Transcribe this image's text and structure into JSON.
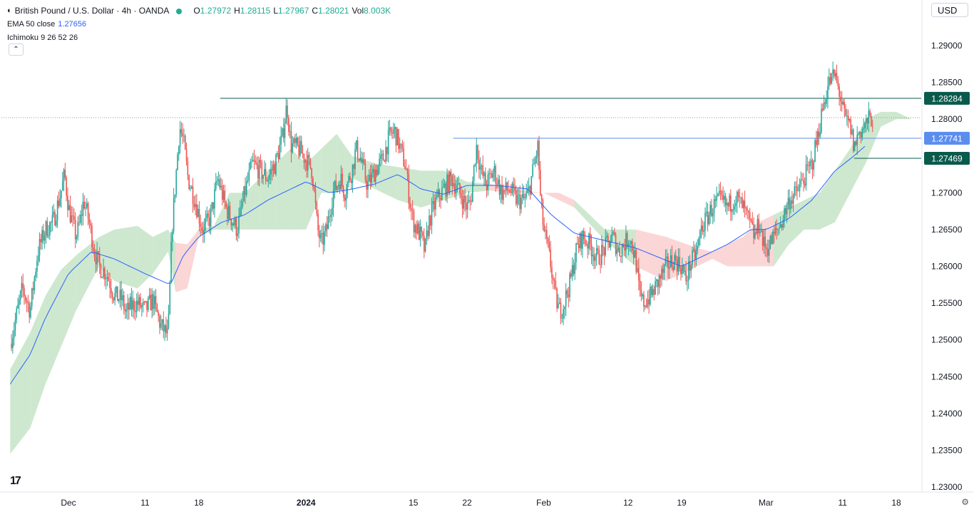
{
  "header": {
    "symbol_title": "British Pound / U.S. Dollar · 4h · OANDA",
    "ohlc": [
      {
        "key": "O",
        "value": "1.27972"
      },
      {
        "key": "H",
        "value": "1.28115"
      },
      {
        "key": "L",
        "value": "1.27967"
      },
      {
        "key": "C",
        "value": "1.28021"
      },
      {
        "key": "Vol",
        "value": "8.003K"
      }
    ],
    "ema_label": "EMA 50 close",
    "ema_value": "1.27656",
    "ichimoku_label": "Ichimoku 9 26 52 26",
    "collapse_icon": "chevron-up-icon"
  },
  "currency_selector": "USD",
  "colors": {
    "up": "#26a69a",
    "down": "#ef5350",
    "ema": "#2962ff",
    "cloud_bull": "#a5d6a7",
    "cloud_bear": "#f7b5b5",
    "line_dark": "#0a5a4c",
    "line_blue": "#5b8def"
  },
  "chart_data": {
    "type": "line",
    "ylim": [
      1.23,
      1.29
    ],
    "y_ticks": [
      "1.29000",
      "1.28500",
      "1.28000",
      "1.27500",
      "1.27000",
      "1.26500",
      "1.26000",
      "1.25500",
      "1.25000",
      "1.24500",
      "1.24000",
      "1.23500",
      "1.23000"
    ],
    "y_tick_values": [
      1.29,
      1.285,
      1.28,
      1.275,
      1.27,
      1.265,
      1.26,
      1.255,
      1.25,
      1.245,
      1.24,
      1.235,
      1.23
    ],
    "x_ticks": [
      {
        "label": "Dec",
        "day": 0
      },
      {
        "label": "11",
        "day": 10
      },
      {
        "label": "18",
        "day": 17
      },
      {
        "label": "2024",
        "day": 31,
        "bold": true
      },
      {
        "label": "15",
        "day": 45
      },
      {
        "label": "22",
        "day": 52
      },
      {
        "label": "Feb",
        "day": 62
      },
      {
        "label": "12",
        "day": 73
      },
      {
        "label": "19",
        "day": 80
      },
      {
        "label": "Mar",
        "day": 91
      },
      {
        "label": "11",
        "day": 101
      },
      {
        "label": "18",
        "day": 108
      }
    ],
    "price_labels": [
      {
        "value": "1.28284",
        "price": 1.28284,
        "style": "dark"
      },
      {
        "value": "1.27741",
        "price": 1.27741,
        "style": "blue"
      },
      {
        "value": "1.27469",
        "price": 1.27469,
        "style": "dark"
      }
    ],
    "horizontal_lines": [
      {
        "price": 1.28284,
        "from_day": 19.8,
        "style": "dark"
      },
      {
        "price": 1.27741,
        "from_day": 50.2,
        "style": "blue"
      },
      {
        "price": 1.27469,
        "from_day": 102.5,
        "style": "dark"
      }
    ],
    "last_price": 1.28021,
    "close_path": [
      [
        -7.6,
        1.2495
      ],
      [
        -6,
        1.257
      ],
      [
        -5,
        1.254
      ],
      [
        -4,
        1.262
      ],
      [
        -3,
        1.265
      ],
      [
        -2,
        1.266
      ],
      [
        -1,
        1.27
      ],
      [
        -0.5,
        1.2725
      ],
      [
        0,
        1.268
      ],
      [
        1,
        1.264
      ],
      [
        1.5,
        1.266
      ],
      [
        2,
        1.269
      ],
      [
        2.6,
        1.2665
      ],
      [
        3.4,
        1.262
      ],
      [
        4,
        1.26
      ],
      [
        5,
        1.259
      ],
      [
        6,
        1.256
      ],
      [
        7,
        1.2555
      ],
      [
        7.5,
        1.2535
      ],
      [
        8,
        1.2545
      ],
      [
        9,
        1.255
      ],
      [
        10,
        1.254
      ],
      [
        11,
        1.2555
      ],
      [
        12,
        1.252
      ],
      [
        13,
        1.2505
      ],
      [
        13.5,
        1.265
      ],
      [
        14,
        1.272
      ],
      [
        14.5,
        1.279
      ],
      [
        15,
        1.277
      ],
      [
        15.6,
        1.272
      ],
      [
        16.5,
        1.269
      ],
      [
        17.5,
        1.265
      ],
      [
        18.5,
        1.2665
      ],
      [
        19.5,
        1.272
      ],
      [
        20.5,
        1.268
      ],
      [
        21.5,
        1.266
      ],
      [
        22,
        1.265
      ],
      [
        23,
        1.27
      ],
      [
        24,
        1.274
      ],
      [
        25,
        1.273
      ],
      [
        26,
        1.272
      ],
      [
        27,
        1.274
      ],
      [
        27.9,
        1.2775
      ],
      [
        28.5,
        1.282
      ],
      [
        29,
        1.2765
      ],
      [
        30,
        1.276
      ],
      [
        31,
        1.2745
      ],
      [
        31.8,
        1.273
      ],
      [
        32.5,
        1.265
      ],
      [
        33,
        1.263
      ],
      [
        33.7,
        1.265
      ],
      [
        34.5,
        1.27
      ],
      [
        35.5,
        1.272
      ],
      [
        36,
        1.27
      ],
      [
        37,
        1.273
      ],
      [
        37.5,
        1.276
      ],
      [
        38,
        1.275
      ],
      [
        39,
        1.271
      ],
      [
        40,
        1.273
      ],
      [
        41,
        1.2745
      ],
      [
        41.8,
        1.2775
      ],
      [
        42.5,
        1.2785
      ],
      [
        43,
        1.277
      ],
      [
        44,
        1.2735
      ],
      [
        44.5,
        1.269
      ],
      [
        45,
        1.266
      ],
      [
        46,
        1.264
      ],
      [
        46.5,
        1.262
      ],
      [
        47,
        1.266
      ],
      [
        48,
        1.269
      ],
      [
        49,
        1.2705
      ],
      [
        50,
        1.272
      ],
      [
        51,
        1.27
      ],
      [
        52,
        1.268
      ],
      [
        52.5,
        1.269
      ],
      [
        53.2,
        1.2765
      ],
      [
        53.8,
        1.273
      ],
      [
        54.5,
        1.271
      ],
      [
        55.5,
        1.273
      ],
      [
        56.5,
        1.27
      ],
      [
        57.5,
        1.2705
      ],
      [
        58.5,
        1.269
      ],
      [
        59.5,
        1.269
      ],
      [
        60,
        1.27
      ],
      [
        60.8,
        1.274
      ],
      [
        61.3,
        1.2765
      ],
      [
        61.5,
        1.27
      ],
      [
        62,
        1.265
      ],
      [
        62.8,
        1.261
      ],
      [
        63.5,
        1.256
      ],
      [
        64,
        1.254
      ],
      [
        64.5,
        1.2545
      ],
      [
        65.5,
        1.258
      ],
      [
        66.2,
        1.262
      ],
      [
        67,
        1.264
      ],
      [
        68,
        1.263
      ],
      [
        69,
        1.261
      ],
      [
        70,
        1.2625
      ],
      [
        71,
        1.264
      ],
      [
        71.8,
        1.262
      ],
      [
        72.5,
        1.263
      ],
      [
        73.2,
        1.264
      ],
      [
        74,
        1.261
      ],
      [
        74.5,
        1.256
      ],
      [
        75,
        1.255
      ],
      [
        76,
        1.256
      ],
      [
        77,
        1.258
      ],
      [
        78,
        1.26
      ],
      [
        79,
        1.261
      ],
      [
        80,
        1.26
      ],
      [
        80.5,
        1.258
      ],
      [
        81,
        1.26
      ],
      [
        82,
        1.262
      ],
      [
        82.5,
        1.265
      ],
      [
        83,
        1.266
      ],
      [
        84,
        1.268
      ],
      [
        85,
        1.269
      ],
      [
        86,
        1.268
      ],
      [
        87,
        1.2695
      ],
      [
        88,
        1.268
      ],
      [
        88.8,
        1.266
      ],
      [
        89.5,
        1.264
      ],
      [
        90.2,
        1.266
      ],
      [
        90.6,
        1.263
      ],
      [
        91.2,
        1.2625
      ],
      [
        92,
        1.264
      ],
      [
        93,
        1.266
      ],
      [
        94,
        1.269
      ],
      [
        95,
        1.27
      ],
      [
        96,
        1.272
      ],
      [
        97,
        1.274
      ],
      [
        97.8,
        1.278
      ],
      [
        98.5,
        1.282
      ],
      [
        99.2,
        1.285
      ],
      [
        100,
        1.286
      ],
      [
        100.6,
        1.2835
      ],
      [
        101.3,
        1.28
      ],
      [
        102,
        1.279
      ],
      [
        102.5,
        1.276
      ],
      [
        103,
        1.278
      ],
      [
        103.8,
        1.279
      ],
      [
        104.5,
        1.28
      ],
      [
        105,
        1.2802
      ]
    ],
    "candle_noise": 0.0028,
    "ema_path": [
      [
        -7.6,
        1.244
      ],
      [
        -5,
        1.248
      ],
      [
        -3,
        1.253
      ],
      [
        0,
        1.259
      ],
      [
        3,
        1.262
      ],
      [
        6,
        1.261
      ],
      [
        10,
        1.259
      ],
      [
        13.3,
        1.2575
      ],
      [
        15,
        1.2615
      ],
      [
        17,
        1.264
      ],
      [
        20,
        1.266
      ],
      [
        23,
        1.267
      ],
      [
        26,
        1.269
      ],
      [
        29,
        1.2705
      ],
      [
        31,
        1.2715
      ],
      [
        34,
        1.27
      ],
      [
        37,
        1.2705
      ],
      [
        40,
        1.2712
      ],
      [
        43,
        1.2725
      ],
      [
        46,
        1.2705
      ],
      [
        49,
        1.2698
      ],
      [
        52,
        1.271
      ],
      [
        56,
        1.271
      ],
      [
        60,
        1.2705
      ],
      [
        63,
        1.267
      ],
      [
        66,
        1.2645
      ],
      [
        70,
        1.2635
      ],
      [
        74,
        1.2625
      ],
      [
        78,
        1.2608
      ],
      [
        80,
        1.26
      ],
      [
        83,
        1.2615
      ],
      [
        86,
        1.263
      ],
      [
        89,
        1.265
      ],
      [
        91,
        1.265
      ],
      [
        94,
        1.2665
      ],
      [
        97,
        1.269
      ],
      [
        100,
        1.273
      ],
      [
        102,
        1.2746
      ],
      [
        104,
        1.2764
      ]
    ],
    "cloud": [
      [
        -7.6,
        1.2345,
        1.246
      ],
      [
        -5,
        1.238,
        1.251
      ],
      [
        -3,
        1.244,
        1.256
      ],
      [
        -1,
        1.249,
        1.2595
      ],
      [
        1,
        1.254,
        1.2615
      ],
      [
        4,
        1.26,
        1.264
      ],
      [
        6,
        1.258,
        1.265
      ],
      [
        9,
        1.257,
        1.2655
      ],
      [
        11,
        1.259,
        1.264
      ],
      [
        13,
        1.262,
        1.265
      ],
      [
        14,
        1.2565,
        1.2632
      ],
      [
        15.5,
        1.257,
        1.263
      ],
      [
        17,
        1.264,
        1.265
      ],
      [
        19,
        1.265,
        1.2655
      ],
      [
        21,
        1.265,
        1.27
      ],
      [
        23,
        1.265,
        1.27
      ],
      [
        25,
        1.265,
        1.272
      ],
      [
        27,
        1.265,
        1.274
      ],
      [
        29,
        1.265,
        1.276
      ],
      [
        31,
        1.265,
        1.274
      ],
      [
        33,
        1.27,
        1.276
      ],
      [
        35,
        1.27,
        1.278
      ],
      [
        37,
        1.272,
        1.275
      ],
      [
        40,
        1.2705,
        1.274
      ],
      [
        43,
        1.269,
        1.2735
      ],
      [
        46,
        1.268,
        1.273
      ],
      [
        49,
        1.269,
        1.273
      ],
      [
        52,
        1.27,
        1.2715
      ],
      [
        55,
        1.2703,
        1.2712
      ],
      [
        58,
        1.27,
        1.2705
      ],
      [
        60,
        1.27,
        1.2702
      ],
      [
        62,
        1.27,
        1.27
      ],
      [
        64,
        1.269,
        1.27
      ],
      [
        66,
        1.268,
        1.269
      ],
      [
        70,
        1.2635,
        1.265
      ],
      [
        74,
        1.26,
        1.265
      ],
      [
        78,
        1.258,
        1.264
      ],
      [
        82,
        1.26,
        1.2625
      ],
      [
        84,
        1.261,
        1.262
      ],
      [
        86,
        1.26,
        1.263
      ],
      [
        88,
        1.26,
        1.264
      ],
      [
        90,
        1.26,
        1.266
      ],
      [
        92,
        1.26,
        1.267
      ],
      [
        94,
        1.263,
        1.268
      ],
      [
        96,
        1.265,
        1.269
      ],
      [
        98,
        1.265,
        1.27
      ],
      [
        100,
        1.266,
        1.273
      ],
      [
        102,
        1.27,
        1.276
      ],
      [
        104,
        1.274,
        1.28
      ],
      [
        106,
        1.279,
        1.281
      ],
      [
        108,
        1.28,
        1.281
      ],
      [
        110,
        1.28,
        1.28
      ]
    ]
  },
  "branding": {
    "logo_icon": "tradingview-logo-icon",
    "logo_text": "17",
    "settings_icon": "gear-icon"
  }
}
